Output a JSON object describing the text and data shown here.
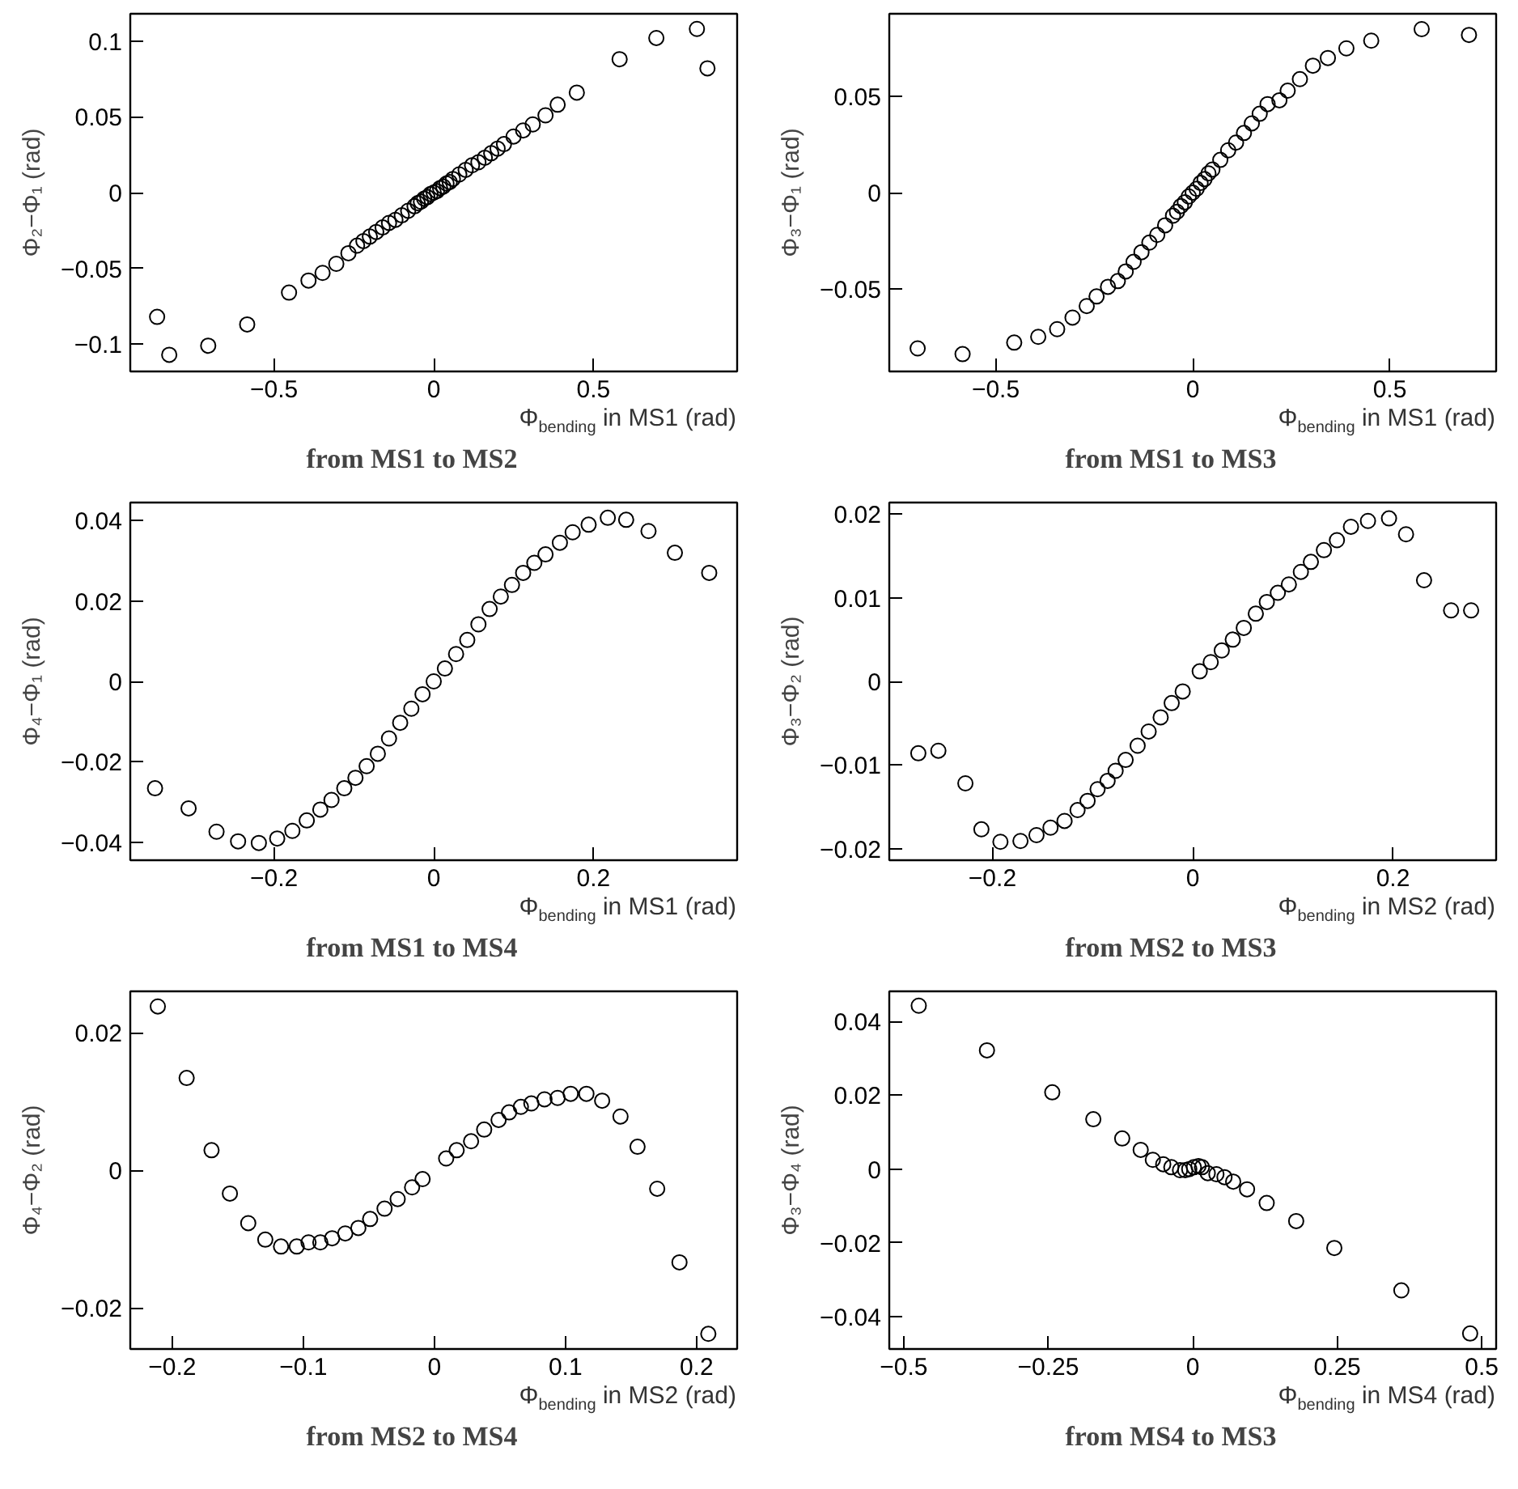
{
  "chart_data": [
    {
      "type": "scatter",
      "title": "from MS1 to MS2",
      "xlabel": "Φ$_{bending}$ in MS1 (rad)",
      "ylabel": "Φ₂−Φ₁ (rad)",
      "marker": "circle",
      "color": "#000000",
      "xlim": [
        -0.95,
        0.95
      ],
      "ylim": [
        -0.118,
        0.118
      ],
      "xticks": [
        {
          "value": -0.5,
          "label": "−0.5"
        },
        0,
        0.5
      ],
      "yticks": [
        {
          "value": -0.1,
          "label": "−0.1"
        },
        {
          "value": -0.05,
          "label": "−0.05"
        },
        0,
        0.05,
        0.1
      ],
      "x": [
        -0.866,
        -0.828,
        -0.706,
        -0.584,
        -0.453,
        -0.392,
        -0.348,
        -0.305,
        -0.267,
        -0.24,
        -0.22,
        -0.2,
        -0.18,
        -0.16,
        -0.14,
        -0.12,
        -0.1,
        -0.08,
        -0.06,
        -0.05,
        -0.04,
        -0.03,
        -0.02,
        -0.01,
        0,
        0.01,
        0.02,
        0.03,
        0.04,
        0.05,
        0.06,
        0.08,
        0.1,
        0.12,
        0.14,
        0.16,
        0.18,
        0.2,
        0.22,
        0.25,
        0.28,
        0.31,
        0.35,
        0.388,
        0.448,
        0.582,
        0.697,
        0.824,
        0.857
      ],
      "values": [
        -0.082,
        -0.107,
        -0.101,
        -0.087,
        -0.066,
        -0.058,
        -0.053,
        -0.047,
        -0.04,
        -0.035,
        -0.032,
        -0.029,
        -0.026,
        -0.023,
        -0.02,
        -0.018,
        -0.015,
        -0.012,
        -0.009,
        -0.007,
        -0.006,
        -0.004,
        -0.003,
        -0.001,
        0,
        0.001,
        0.003,
        0.004,
        0.006,
        0.007,
        0.009,
        0.012,
        0.015,
        0.018,
        0.02,
        0.023,
        0.026,
        0.029,
        0.032,
        0.037,
        0.041,
        0.045,
        0.051,
        0.058,
        0.066,
        0.088,
        0.102,
        0.108,
        0.082
      ]
    },
    {
      "type": "scatter",
      "title": "from MS1 to MS3",
      "xlabel": "Φ$_{bending}$ in MS1 (rad)",
      "ylabel": "Φ₃−Φ₁ (rad)",
      "marker": "circle",
      "color": "#000000",
      "xlim": [
        -0.77,
        0.77
      ],
      "ylim": [
        -0.093,
        0.093
      ],
      "xticks": [
        {
          "value": -0.5,
          "label": "−0.5"
        },
        0,
        0.5
      ],
      "yticks": [
        {
          "value": -0.05,
          "label": "−0.05"
        },
        0,
        0.05
      ],
      "x": [
        -0.698,
        -0.584,
        -0.453,
        -0.392,
        -0.344,
        -0.305,
        -0.269,
        -0.244,
        -0.215,
        -0.19,
        -0.17,
        -0.15,
        -0.13,
        -0.11,
        -0.09,
        -0.07,
        -0.05,
        -0.04,
        -0.03,
        -0.02,
        -0.01,
        0,
        0.01,
        0.02,
        0.03,
        0.04,
        0.05,
        0.07,
        0.09,
        0.11,
        0.13,
        0.15,
        0.17,
        0.19,
        0.22,
        0.241,
        0.272,
        0.305,
        0.343,
        0.39,
        0.453,
        0.581,
        0.701
      ],
      "values": [
        -0.081,
        -0.084,
        -0.078,
        -0.075,
        -0.071,
        -0.065,
        -0.059,
        -0.054,
        -0.049,
        -0.046,
        -0.041,
        -0.036,
        -0.031,
        -0.026,
        -0.022,
        -0.017,
        -0.012,
        -0.01,
        -0.007,
        -0.005,
        -0.002,
        0,
        0.002,
        0.005,
        0.007,
        0.01,
        0.012,
        0.017,
        0.022,
        0.026,
        0.031,
        0.036,
        0.041,
        0.046,
        0.048,
        0.053,
        0.059,
        0.066,
        0.07,
        0.075,
        0.079,
        0.085,
        0.082
      ]
    },
    {
      "type": "scatter",
      "title": "from MS1 to MS4",
      "xlabel": "Φ$_{bending}$ in MS1 (rad)",
      "ylabel": "Φ₄−Φ₁ (rad)",
      "marker": "circle",
      "color": "#000000",
      "xlim": [
        -0.38,
        0.38
      ],
      "ylim": [
        -0.0445,
        0.0445
      ],
      "xticks": [
        {
          "value": -0.2,
          "label": "−0.2"
        },
        0,
        0.2
      ],
      "yticks": [
        {
          "value": -0.04,
          "label": "−0.04"
        },
        {
          "value": -0.02,
          "label": "−0.02"
        },
        0,
        0.02,
        0.04
      ],
      "x": [
        -0.349,
        -0.307,
        -0.272,
        -0.245,
        -0.219,
        -0.196,
        -0.177,
        -0.159,
        -0.142,
        -0.128,
        -0.112,
        -0.098,
        -0.084,
        -0.07,
        -0.056,
        -0.042,
        -0.028,
        -0.014,
        0,
        0.014,
        0.028,
        0.042,
        0.056,
        0.07,
        0.084,
        0.098,
        0.112,
        0.126,
        0.14,
        0.158,
        0.174,
        0.194,
        0.218,
        0.241,
        0.269,
        0.302,
        0.345
      ],
      "values": [
        -0.0266,
        -0.0316,
        -0.0374,
        -0.0398,
        -0.0402,
        -0.0391,
        -0.0372,
        -0.0346,
        -0.0319,
        -0.0295,
        -0.0266,
        -0.024,
        -0.0211,
        -0.018,
        -0.0142,
        -0.0103,
        -0.0068,
        -0.0032,
        0,
        0.0032,
        0.0068,
        0.0103,
        0.0142,
        0.018,
        0.0211,
        0.024,
        0.027,
        0.0295,
        0.0316,
        0.0345,
        0.0371,
        0.039,
        0.0407,
        0.0402,
        0.0374,
        0.032,
        0.027
      ]
    },
    {
      "type": "scatter",
      "title": "from MS2 to MS3",
      "xlabel": "Φ$_{bending}$ in MS2 (rad)",
      "ylabel": "Φ₃−Φ₂ (rad)",
      "marker": "circle",
      "color": "#000000",
      "xlim": [
        -0.303,
        0.303
      ],
      "ylim": [
        -0.0214,
        0.0214
      ],
      "xticks": [
        {
          "value": -0.2,
          "label": "−0.2"
        },
        0,
        0.2
      ],
      "yticks": [
        {
          "value": -0.02,
          "label": "−0.02"
        },
        {
          "value": -0.01,
          "label": "−0.01"
        },
        0,
        0.01,
        0.02
      ],
      "x": [
        -0.274,
        -0.254,
        -0.227,
        -0.211,
        -0.192,
        -0.172,
        -0.156,
        -0.142,
        -0.128,
        -0.115,
        -0.105,
        -0.095,
        -0.085,
        -0.077,
        -0.067,
        -0.055,
        -0.044,
        -0.032,
        -0.021,
        -0.01,
        0.007,
        0.018,
        0.029,
        0.04,
        0.051,
        0.063,
        0.074,
        0.085,
        0.096,
        0.108,
        0.118,
        0.131,
        0.144,
        0.158,
        0.175,
        0.196,
        0.213,
        0.231,
        0.258,
        0.278
      ],
      "values": [
        -0.0086,
        -0.0083,
        -0.0122,
        -0.0177,
        -0.0192,
        -0.0191,
        -0.0184,
        -0.0175,
        -0.0167,
        -0.0154,
        -0.0143,
        -0.0129,
        -0.0119,
        -0.0107,
        -0.0094,
        -0.0077,
        -0.006,
        -0.0043,
        -0.0026,
        -0.0012,
        0.0012,
        0.0023,
        0.0037,
        0.005,
        0.0064,
        0.0081,
        0.0095,
        0.0106,
        0.0116,
        0.0131,
        0.0143,
        0.0157,
        0.0169,
        0.0185,
        0.0192,
        0.0195,
        0.0176,
        0.0121,
        0.0085,
        0.0085
      ]
    },
    {
      "type": "scatter",
      "title": "from MS2 to MS4",
      "xlabel": "Φ$_{bending}$ in MS2 (rad)",
      "ylabel": "Φ₄−Φ₂ (rad)",
      "marker": "circle",
      "color": "#000000",
      "xlim": [
        -0.232,
        0.231
      ],
      "ylim": [
        -0.026,
        0.026
      ],
      "xticks": [
        {
          "value": -0.2,
          "label": "−0.2"
        },
        {
          "value": -0.1,
          "label": "−0.1"
        },
        0,
        0.1,
        0.2
      ],
      "yticks": [
        {
          "value": -0.02,
          "label": "−0.02"
        },
        0,
        0.02
      ],
      "x": [
        -0.211,
        -0.189,
        -0.17,
        -0.156,
        -0.142,
        -0.129,
        -0.117,
        -0.105,
        -0.096,
        -0.087,
        -0.078,
        -0.068,
        -0.058,
        -0.049,
        -0.038,
        -0.028,
        -0.017,
        -0.009,
        0.009,
        0.017,
        0.028,
        0.038,
        0.049,
        0.057,
        0.066,
        0.074,
        0.084,
        0.094,
        0.104,
        0.116,
        0.128,
        0.142,
        0.155,
        0.17,
        0.187,
        0.209
      ],
      "values": [
        0.0238,
        0.0134,
        0.0029,
        -0.0034,
        -0.0077,
        -0.0101,
        -0.0111,
        -0.0111,
        -0.0105,
        -0.0105,
        -0.0099,
        -0.0092,
        -0.0084,
        -0.0071,
        -0.0056,
        -0.0042,
        -0.0025,
        -0.0013,
        0.0017,
        0.0029,
        0.0042,
        0.0059,
        0.0073,
        0.0084,
        0.0092,
        0.0097,
        0.0103,
        0.0105,
        0.0111,
        0.0111,
        0.0101,
        0.0078,
        0.0034,
        -0.0027,
        -0.0134,
        -0.0238
      ]
    },
    {
      "type": "scatter",
      "title": "from MS4 to MS3",
      "xlabel": "Φ$_{bending}$ in MS4 (rad)",
      "ylabel": "Φ₃−Φ₄ (rad)",
      "marker": "circle",
      "color": "#000000",
      "xlim": [
        -0.525,
        0.525
      ],
      "ylim": [
        -0.0488,
        0.0482
      ],
      "xticks": [
        {
          "value": -0.5,
          "label": "−0.5"
        },
        {
          "value": -0.25,
          "label": "−0.25"
        },
        0,
        0.25,
        0.5
      ],
      "yticks": [
        {
          "value": -0.04,
          "label": "−0.04"
        },
        {
          "value": -0.02,
          "label": "−0.02"
        },
        0,
        0.02,
        0.04
      ],
      "x": [
        -0.474,
        -0.356,
        -0.243,
        -0.172,
        -0.122,
        -0.09,
        -0.069,
        -0.051,
        -0.037,
        -0.022,
        -0.013,
        -0.006,
        0.002,
        0.01,
        0.016,
        0.026,
        0.041,
        0.055,
        0.07,
        0.094,
        0.128,
        0.179,
        0.245,
        0.361,
        0.48
      ],
      "values": [
        0.0443,
        0.0322,
        0.0208,
        0.0135,
        0.0083,
        0.0052,
        0.0025,
        0.0013,
        0.0005,
        -0.0003,
        -0.0003,
        0,
        0.0005,
        0.0008,
        0.0005,
        -0.0011,
        -0.0014,
        -0.0022,
        -0.0034,
        -0.0055,
        -0.0092,
        -0.0141,
        -0.0214,
        -0.0329,
        -0.0446
      ]
    }
  ]
}
